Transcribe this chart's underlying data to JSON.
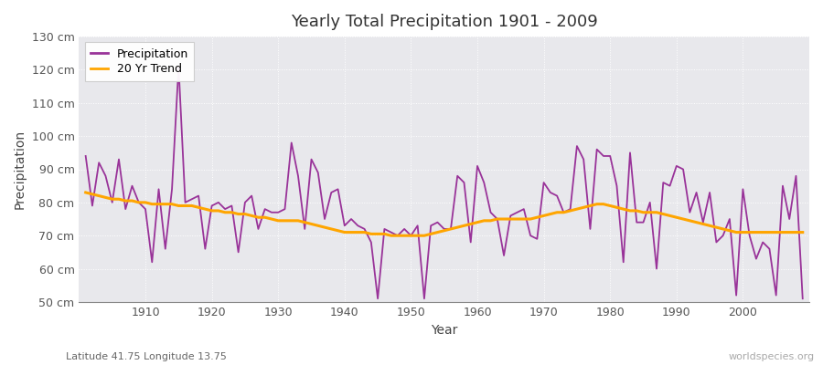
{
  "title": "Yearly Total Precipitation 1901 - 2009",
  "xlabel": "Year",
  "ylabel": "Precipitation",
  "lat_lon_label": "Latitude 41.75 Longitude 13.75",
  "watermark": "worldspecies.org",
  "precip_color": "#993399",
  "trend_color": "#FFA500",
  "fig_bg_color": "#ffffff",
  "plot_bg_color": "#e8e8ec",
  "ylim": [
    50,
    130
  ],
  "yticks": [
    50,
    60,
    70,
    80,
    90,
    100,
    110,
    120,
    130
  ],
  "xlim": [
    1900,
    2010
  ],
  "xticks": [
    1910,
    1920,
    1930,
    1940,
    1950,
    1960,
    1970,
    1980,
    1990,
    2000
  ],
  "years": [
    1901,
    1902,
    1903,
    1904,
    1905,
    1906,
    1907,
    1908,
    1909,
    1910,
    1911,
    1912,
    1913,
    1914,
    1915,
    1916,
    1917,
    1918,
    1919,
    1920,
    1921,
    1922,
    1923,
    1924,
    1925,
    1926,
    1927,
    1928,
    1929,
    1930,
    1931,
    1932,
    1933,
    1934,
    1935,
    1936,
    1937,
    1938,
    1939,
    1940,
    1941,
    1942,
    1943,
    1944,
    1945,
    1946,
    1947,
    1948,
    1949,
    1950,
    1951,
    1952,
    1953,
    1954,
    1955,
    1956,
    1957,
    1958,
    1959,
    1960,
    1961,
    1962,
    1963,
    1964,
    1965,
    1966,
    1967,
    1968,
    1969,
    1970,
    1971,
    1972,
    1973,
    1974,
    1975,
    1976,
    1977,
    1978,
    1979,
    1980,
    1981,
    1982,
    1983,
    1984,
    1985,
    1986,
    1987,
    1988,
    1989,
    1990,
    1991,
    1992,
    1993,
    1994,
    1995,
    1996,
    1997,
    1998,
    1999,
    2000,
    2001,
    2002,
    2003,
    2004,
    2005,
    2006,
    2007,
    2008,
    2009
  ],
  "precip": [
    94,
    79,
    92,
    88,
    80,
    93,
    78,
    85,
    80,
    78,
    62,
    84,
    66,
    84,
    121,
    80,
    81,
    82,
    66,
    79,
    80,
    78,
    79,
    65,
    80,
    82,
    72,
    78,
    77,
    77,
    78,
    98,
    88,
    72,
    93,
    89,
    75,
    83,
    84,
    73,
    75,
    73,
    72,
    68,
    51,
    72,
    71,
    70,
    72,
    70,
    73,
    51,
    73,
    74,
    72,
    72,
    88,
    86,
    68,
    91,
    86,
    77,
    75,
    64,
    76,
    77,
    78,
    70,
    69,
    86,
    83,
    82,
    77,
    78,
    97,
    93,
    72,
    96,
    94,
    94,
    85,
    62,
    95,
    74,
    74,
    80,
    60,
    86,
    85,
    91,
    90,
    77,
    83,
    74,
    83,
    68,
    70,
    75,
    52,
    84,
    70,
    63,
    68,
    66,
    52,
    85,
    75,
    88,
    51
  ],
  "trend": [
    83,
    82.5,
    82,
    81.5,
    81,
    81,
    80.5,
    80.5,
    80,
    80,
    79.5,
    79.5,
    79.5,
    79.5,
    79,
    79,
    79,
    78.5,
    78,
    77.5,
    77.5,
    77,
    77,
    76.5,
    76.5,
    76,
    75.5,
    75.5,
    75,
    74.5,
    74.5,
    74.5,
    74.5,
    74,
    73.5,
    73,
    72.5,
    72,
    71.5,
    71,
    71,
    71,
    71,
    70.5,
    70.5,
    70.5,
    70,
    70,
    70,
    70,
    70,
    70,
    70.5,
    71,
    71.5,
    72,
    72.5,
    73,
    73.5,
    74,
    74.5,
    74.5,
    75,
    75,
    75,
    75,
    75,
    75,
    75.5,
    76,
    76.5,
    77,
    77,
    77.5,
    78,
    78.5,
    79,
    79.5,
    79.5,
    79,
    78.5,
    78,
    77.5,
    77.5,
    77,
    77,
    77,
    76.5,
    76,
    75.5,
    75,
    74.5,
    74,
    73.5,
    73,
    72.5,
    72,
    71.5,
    71,
    71,
    71,
    71,
    71,
    71,
    71,
    71,
    71,
    71,
    71
  ]
}
